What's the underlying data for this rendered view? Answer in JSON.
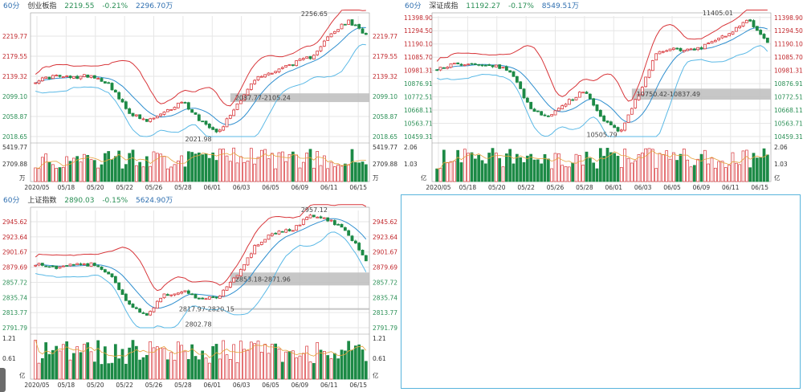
{
  "colors": {
    "up": "#d8363a",
    "down": "#1d8a46",
    "blue": "#2f8fcf",
    "upper": "#d8363a",
    "mid": "#2f8fcf",
    "lower": "#5bb9e6",
    "grid": "#e6e6e6",
    "axis": "#9a9a9a",
    "label_up": "#c0262b",
    "label_down": "#2a8f55",
    "hatch": "#bdbdbd",
    "vol_ma": "#e6a23c"
  },
  "panels": [
    {
      "period": "60分",
      "name": "创业板指",
      "price": "2219.55",
      "change": "-0.21%",
      "volume": "2296.70万",
      "chart_data": {
        "type": "candlestick",
        "y_labels_left": [
          "2219.77",
          "2179.55",
          "2139.32",
          "2099.10",
          "2058.87",
          "2018.65"
        ],
        "y_labels_right": [
          "2219.77",
          "2179.55",
          "2139.32",
          "2099.10",
          "2058.87",
          "2018.65"
        ],
        "ylim": [
          2018.65,
          2260
        ],
        "vol_labels": [
          "5419.77",
          "2709.88",
          "万"
        ],
        "x_labels": [
          "2020/05",
          "05/18",
          "05/20",
          "05/22",
          "05/26",
          "05/28",
          "06/01",
          "06/03",
          "06/05",
          "06/09",
          "06/11",
          "06/15"
        ],
        "anchors": [
          2130,
          2140,
          2136,
          2142,
          2125,
          2070,
          2048,
          2065,
          2090,
          2050,
          2028,
          2085,
          2135,
          2150,
          2165,
          2178,
          2220,
          2250,
          2224
        ],
        "gap": [
          2087.77,
          2105.24
        ],
        "annotations": [
          {
            "text": "2256.65",
            "y": 2256.65
          },
          {
            "text": "2087.77-2105.24",
            "y": 2096.5
          },
          {
            "text": "2021.98",
            "y": 2021.98
          }
        ]
      }
    },
    {
      "period": "60分",
      "name": "深证成指",
      "price": "11192.27",
      "change": "-0.17%",
      "volume": "8549.51万",
      "chart_data": {
        "type": "candlestick",
        "y_labels_left": [
          "11398.90",
          "11294.50",
          "11190.10",
          "11085.70",
          "10981.31",
          "10876.91",
          "10772.51",
          "10668.11",
          "10563.71",
          "10459.31"
        ],
        "y_labels_right": [
          "11398.90",
          "11294.50",
          "11190.10",
          "11085.70",
          "10981.31",
          "10876.91",
          "10772.51",
          "10668.11",
          "10563.71",
          "10459.31"
        ],
        "ylim": [
          10459.31,
          11410
        ],
        "vol_labels": [
          "2.06",
          "1.03",
          "亿"
        ],
        "x_labels": [
          "2020/05",
          "05/18",
          "05/20",
          "05/22",
          "05/26",
          "05/28",
          "06/01",
          "06/03",
          "06/05",
          "06/09",
          "06/11",
          "06/15"
        ],
        "anchors": [
          11000,
          11030,
          11040,
          11020,
          10980,
          10700,
          10600,
          10720,
          10820,
          10600,
          10500,
          10800,
          11130,
          11150,
          11140,
          11200,
          11280,
          11380,
          11192
        ],
        "gap": [
          10750.42,
          10837.49
        ],
        "annotations": [
          {
            "text": "11405.01",
            "y": 11405.01
          },
          {
            "text": "10750.42-10837.49",
            "y": 10794
          },
          {
            "text": "10505.79",
            "y": 10505.79
          }
        ]
      }
    },
    {
      "period": "60分",
      "name": "上证指数",
      "price": "2890.03",
      "change": "-0.15%",
      "volume": "5624.90万",
      "chart_data": {
        "type": "candlestick",
        "y_labels_left": [
          "2945.62",
          "2923.64",
          "2901.67",
          "2879.69",
          "2857.72",
          "2835.74",
          "2813.77",
          "2791.79"
        ],
        "y_labels_right": [
          "2945.62",
          "2923.64",
          "2901.67",
          "2879.69",
          "2857.72",
          "2835.74",
          "2813.77",
          "2791.79"
        ],
        "ylim": [
          2791.79,
          2962
        ],
        "vol_labels": [
          "1.21",
          "0.61",
          "亿"
        ],
        "x_labels": [
          "2020/05",
          "05/18",
          "05/20",
          "05/22",
          "05/26",
          "05/28",
          "06/01",
          "06/03",
          "06/05",
          "06/09",
          "06/11",
          "06/15"
        ],
        "anchors": [
          2885,
          2878,
          2882,
          2884,
          2870,
          2830,
          2808,
          2840,
          2845,
          2832,
          2838,
          2870,
          2912,
          2930,
          2935,
          2955,
          2948,
          2930,
          2890
        ],
        "gap": [
          2853.18,
          2871.96
        ],
        "gap2": [
          2817.97,
          2820.15
        ],
        "annotations": [
          {
            "text": "2957.12",
            "y": 2957.12
          },
          {
            "text": "2853.18-2871.96",
            "y": 2862.5
          },
          {
            "text": "2817.97-2820.15",
            "y": 2819
          },
          {
            "text": "2802.78",
            "y": 2802.78
          }
        ]
      }
    }
  ]
}
